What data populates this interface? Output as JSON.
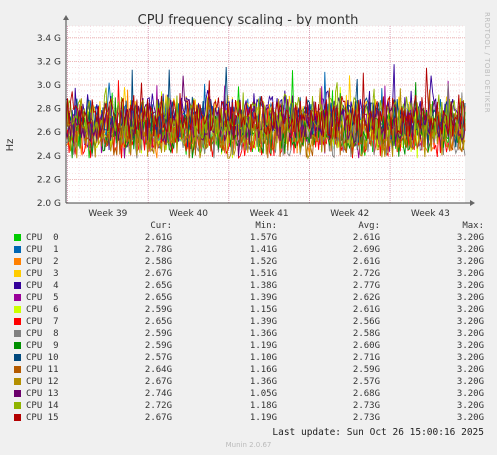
{
  "chart_data": {
    "type": "line",
    "title": "CPU frequency scaling - by month",
    "ylabel": "Hz",
    "yticks": [
      "2.0 G",
      "2.2 G",
      "2.4 G",
      "2.6 G",
      "2.8 G",
      "3.0 G",
      "3.2 G",
      "3.4 G"
    ],
    "ytick_values": [
      2.0,
      2.2,
      2.4,
      2.6,
      2.8,
      3.0,
      3.2,
      3.4
    ],
    "ylim": [
      2.0,
      3.5
    ],
    "x_labels": [
      "Week 39",
      "Week 40",
      "Week 41",
      "Week 42",
      "Week 43"
    ],
    "grid": true,
    "columns": {
      "cur": "Cur:",
      "min": "Min:",
      "avg": "Avg:",
      "max": "Max:"
    },
    "series": [
      {
        "name": "CPU  0",
        "color": "#00cc00",
        "cur": "2.61G",
        "min": "1.57G",
        "avg": "2.61G",
        "max": "3.20G",
        "avg_val": 2.61
      },
      {
        "name": "CPU  1",
        "color": "#0066b3",
        "cur": "2.78G",
        "min": "1.41G",
        "avg": "2.69G",
        "max": "3.20G",
        "avg_val": 2.69
      },
      {
        "name": "CPU  2",
        "color": "#ff8000",
        "cur": "2.58G",
        "min": "1.52G",
        "avg": "2.61G",
        "max": "3.20G",
        "avg_val": 2.61
      },
      {
        "name": "CPU  3",
        "color": "#ffcc00",
        "cur": "2.67G",
        "min": "1.51G",
        "avg": "2.72G",
        "max": "3.20G",
        "avg_val": 2.72
      },
      {
        "name": "CPU  4",
        "color": "#330099",
        "cur": "2.65G",
        "min": "1.38G",
        "avg": "2.77G",
        "max": "3.20G",
        "avg_val": 2.77
      },
      {
        "name": "CPU  5",
        "color": "#990099",
        "cur": "2.65G",
        "min": "1.39G",
        "avg": "2.62G",
        "max": "3.20G",
        "avg_val": 2.62
      },
      {
        "name": "CPU  6",
        "color": "#ccff00",
        "cur": "2.59G",
        "min": "1.15G",
        "avg": "2.61G",
        "max": "3.20G",
        "avg_val": 2.61
      },
      {
        "name": "CPU  7",
        "color": "#ff0000",
        "cur": "2.65G",
        "min": "1.39G",
        "avg": "2.56G",
        "max": "3.20G",
        "avg_val": 2.56
      },
      {
        "name": "CPU  8",
        "color": "#808080",
        "cur": "2.59G",
        "min": "1.36G",
        "avg": "2.58G",
        "max": "3.20G",
        "avg_val": 2.58
      },
      {
        "name": "CPU  9",
        "color": "#008f00",
        "cur": "2.59G",
        "min": "1.19G",
        "avg": "2.60G",
        "max": "3.20G",
        "avg_val": 2.6
      },
      {
        "name": "CPU 10",
        "color": "#00487d",
        "cur": "2.57G",
        "min": "1.10G",
        "avg": "2.71G",
        "max": "3.20G",
        "avg_val": 2.71
      },
      {
        "name": "CPU 11",
        "color": "#b35a00",
        "cur": "2.64G",
        "min": "1.16G",
        "avg": "2.59G",
        "max": "3.20G",
        "avg_val": 2.59
      },
      {
        "name": "CPU 12",
        "color": "#b38f00",
        "cur": "2.67G",
        "min": "1.36G",
        "avg": "2.57G",
        "max": "3.20G",
        "avg_val": 2.57
      },
      {
        "name": "CPU 13",
        "color": "#6b006b",
        "cur": "2.74G",
        "min": "1.05G",
        "avg": "2.68G",
        "max": "3.20G",
        "avg_val": 2.68
      },
      {
        "name": "CPU 14",
        "color": "#8fb300",
        "cur": "2.72G",
        "min": "1.18G",
        "avg": "2.73G",
        "max": "3.20G",
        "avg_val": 2.73
      },
      {
        "name": "CPU 15",
        "color": "#b30000",
        "cur": "2.67G",
        "min": "1.19G",
        "avg": "2.73G",
        "max": "3.20G",
        "avg_val": 2.73
      }
    ]
  },
  "side_label": "RRDTOOL / TOBI OETIKER",
  "last_update": "Last update: Sun Oct 26 15:00:16 2025",
  "munin_version": "Munin 2.0.67"
}
